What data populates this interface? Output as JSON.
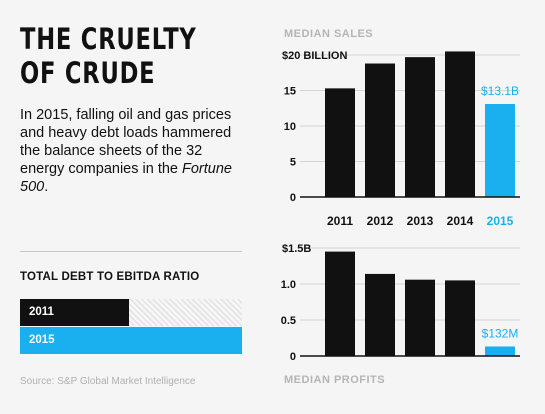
{
  "title_line1": "THE CRUELTY",
  "title_line2": "OF CRUDE",
  "description_part1": "In 2015, falling oil and gas prices and heavy debt loads hammered the balance sheets of the 32 energy companies in the ",
  "description_italic": "Fortune 500",
  "description_part2": ".",
  "ratio_chart": {
    "title": "TOTAL DEBT TO EBITDA RATIO",
    "bars": [
      {
        "label": "2011",
        "fraction": 0.49,
        "color": "#111111"
      },
      {
        "label": "2015",
        "fraction": 1.0,
        "color": "#1ab0f0"
      }
    ]
  },
  "source": "Source: S&P Global Market Intelligence",
  "chart_data": [
    {
      "type": "bar",
      "title": "MEDIAN SALES",
      "categories": [
        "2011",
        "2012",
        "2013",
        "2014",
        "2015"
      ],
      "values": [
        15.3,
        18.8,
        19.7,
        20.5,
        13.1
      ],
      "colors": [
        "#111111",
        "#111111",
        "#111111",
        "#111111",
        "#1ab0f0"
      ],
      "category_colors": [
        "#111111",
        "#111111",
        "#111111",
        "#111111",
        "#1ab0f0"
      ],
      "ylim": [
        0,
        20
      ],
      "ticks": [
        {
          "value": 0,
          "label": "0"
        },
        {
          "value": 5,
          "label": "5"
        },
        {
          "value": 10,
          "label": "10"
        },
        {
          "value": 15,
          "label": "15"
        },
        {
          "value": 20,
          "label": "$20 BILLION"
        }
      ],
      "data_labels": [
        "",
        "",
        "",
        "",
        "$13.1B"
      ],
      "highlight_color": "#1ab0f0"
    },
    {
      "type": "bar",
      "title": "MEDIAN PROFITS",
      "categories": [
        "2011",
        "2012",
        "2013",
        "2014",
        "2015"
      ],
      "values": [
        1.45,
        1.14,
        1.06,
        1.05,
        0.132
      ],
      "colors": [
        "#111111",
        "#111111",
        "#111111",
        "#111111",
        "#1ab0f0"
      ],
      "ylim": [
        0,
        1.5
      ],
      "ticks": [
        {
          "value": 0,
          "label": "0"
        },
        {
          "value": 0.5,
          "label": "0.5"
        },
        {
          "value": 1.0,
          "label": "1.0"
        },
        {
          "value": 1.5,
          "label": "$1.5B"
        }
      ],
      "data_labels": [
        "",
        "",
        "",
        "",
        "$132M"
      ],
      "highlight_color": "#1ab0f0"
    }
  ]
}
